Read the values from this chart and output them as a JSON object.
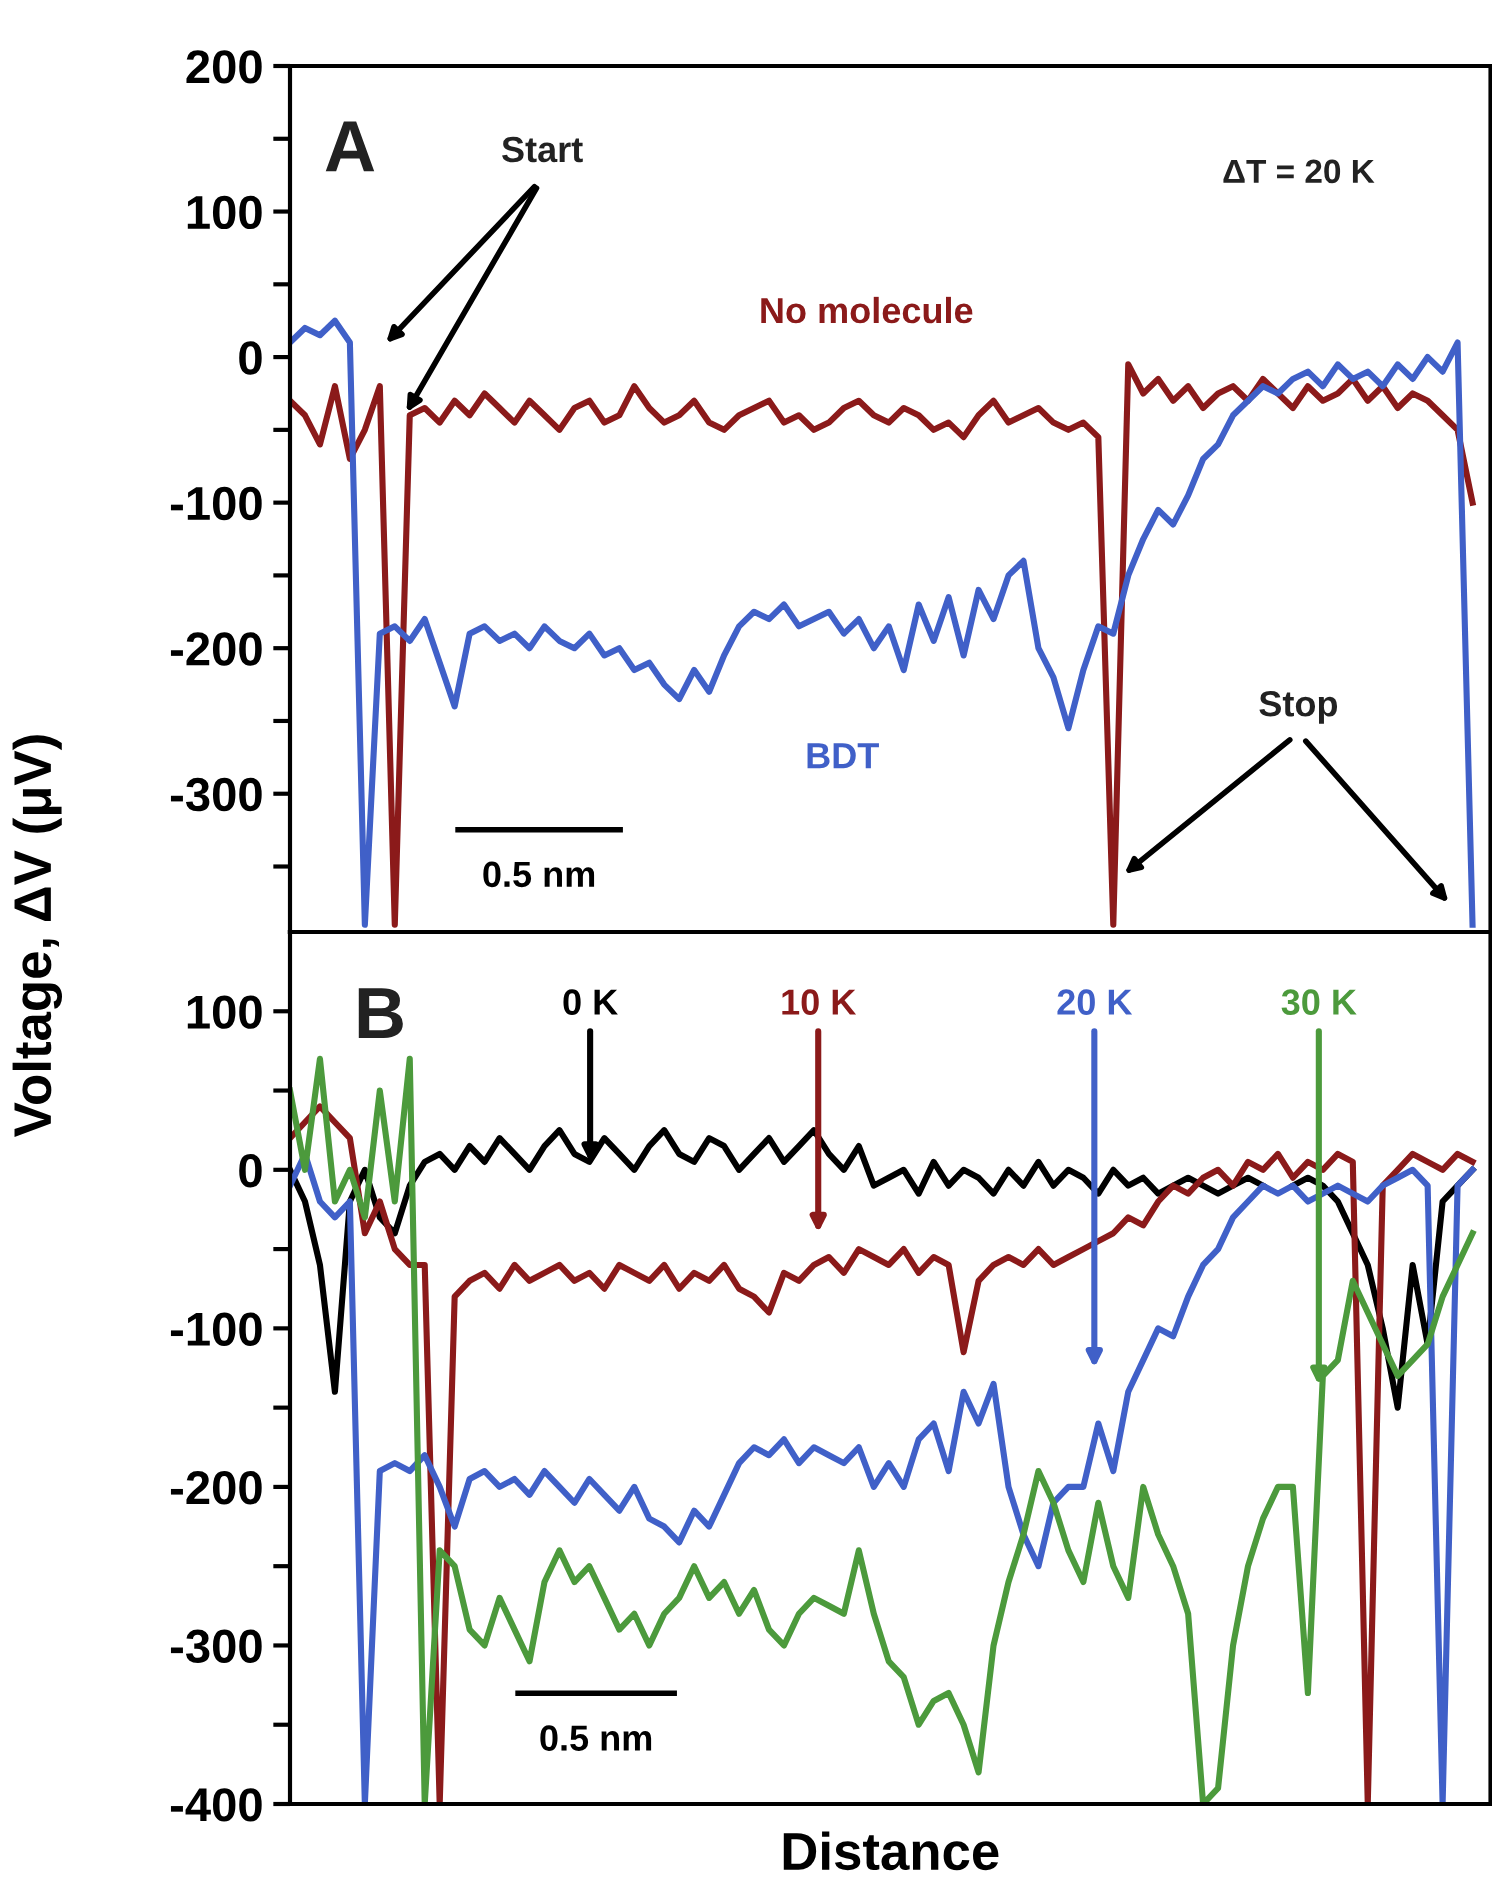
{
  "chart_data": [
    {
      "type": "line",
      "ylabel": "Voltage, ΔV (μV)",
      "tick_labels": "y",
      "categories": [
        null,
        null,
        null,
        null,
        null,
        null,
        null,
        null,
        null,
        null,
        null,
        null,
        null,
        null,
        null,
        null,
        null,
        null,
        null,
        null,
        null,
        null,
        null,
        null,
        null,
        null,
        null,
        null,
        null,
        null,
        null,
        null,
        null,
        null,
        null,
        null,
        null,
        null,
        null,
        null,
        null,
        null,
        null,
        null,
        null,
        null,
        null,
        null,
        null,
        null,
        null,
        null,
        null,
        null,
        null,
        null,
        null,
        null,
        null,
        null,
        null,
        null,
        null,
        null,
        null,
        null,
        null,
        null,
        null,
        null,
        null,
        null,
        null,
        null,
        null,
        null,
        null,
        null,
        null,
        null
      ],
      "ylim": [
        -395,
        200
      ],
      "yticks": [
        200,
        {
          "value": 150,
          "label": null
        },
        100,
        {
          "value": 50,
          "label": null
        },
        0,
        {
          "value": -50,
          "label": null
        },
        -100,
        {
          "value": -150,
          "label": null
        },
        -200,
        {
          "value": -250,
          "label": null
        },
        -300,
        {
          "value": -350,
          "label": null
        }
      ],
      "series": [
        {
          "name": "No molecule",
          "color": "#8b1a1a",
          "values": [
            -30,
            -40,
            -60,
            -20,
            -70,
            -50,
            -20,
            -390,
            -40,
            -35,
            -45,
            -30,
            -40,
            -25,
            -35,
            -45,
            -30,
            -40,
            -50,
            -35,
            -30,
            -45,
            -40,
            -20,
            -35,
            -45,
            -40,
            -30,
            -45,
            -50,
            -40,
            -35,
            -30,
            -45,
            -40,
            -50,
            -45,
            -35,
            -30,
            -40,
            -45,
            -35,
            -40,
            -50,
            -45,
            -55,
            -40,
            -30,
            -45,
            -40,
            -35,
            -45,
            -50,
            -45,
            -55,
            -390,
            -5,
            -25,
            -15,
            -30,
            -20,
            -35,
            -25,
            -20,
            -30,
            -15,
            -25,
            -35,
            -20,
            -30,
            -25,
            -15,
            -30,
            -20,
            -35,
            -25,
            -30,
            -40,
            -50,
            -100
          ]
        },
        {
          "name": "BDT",
          "color": "#4060c8",
          "values": [
            10,
            20,
            15,
            25,
            10,
            -390,
            -190,
            -185,
            -195,
            -180,
            -210,
            -240,
            -190,
            -185,
            -195,
            -190,
            -200,
            -185,
            -195,
            -200,
            -190,
            -205,
            -200,
            -215,
            -210,
            -225,
            -235,
            -215,
            -230,
            -205,
            -185,
            -175,
            -180,
            -170,
            -185,
            -180,
            -175,
            -190,
            -180,
            -200,
            -185,
            -215,
            -170,
            -195,
            -165,
            -205,
            -160,
            -180,
            -150,
            -140,
            -200,
            -220,
            -255,
            -215,
            -185,
            -190,
            -150,
            -125,
            -105,
            -115,
            -95,
            -70,
            -60,
            -40,
            -30,
            -20,
            -25,
            -15,
            -10,
            -20,
            -5,
            -15,
            -10,
            -20,
            -5,
            -15,
            0,
            -10,
            10,
            -390
          ]
        }
      ],
      "annotations": [
        "A",
        "Start",
        "ΔT = 20 K",
        "Stop",
        "0.5 nm"
      ]
    },
    {
      "type": "line",
      "xlabel": "Distance",
      "tick_labels": "y",
      "categories": [
        null,
        null,
        null,
        null,
        null,
        null,
        null,
        null,
        null,
        null,
        null,
        null,
        null,
        null,
        null,
        null,
        null,
        null,
        null,
        null,
        null,
        null,
        null,
        null,
        null,
        null,
        null,
        null,
        null,
        null,
        null,
        null,
        null,
        null,
        null,
        null,
        null,
        null,
        null,
        null,
        null,
        null,
        null,
        null,
        null,
        null,
        null,
        null,
        null,
        null,
        null,
        null,
        null,
        null,
        null,
        null,
        null,
        null,
        null,
        null,
        null,
        null,
        null,
        null,
        null,
        null,
        null,
        null,
        null,
        null,
        null,
        null,
        null,
        null,
        null,
        null,
        null,
        null,
        null,
        null
      ],
      "ylim": [
        -400,
        150
      ],
      "yticks": [
        100,
        {
          "value": 50,
          "label": null
        },
        0,
        {
          "value": -50,
          "label": null
        },
        -100,
        {
          "value": -150,
          "label": null
        },
        -200,
        {
          "value": -250,
          "label": null
        },
        -300,
        {
          "value": -350,
          "label": null
        },
        -400
      ],
      "series": [
        {
          "name": "0 K",
          "color": "#000000",
          "values": [
            0,
            -20,
            -60,
            -140,
            -20,
            0,
            -30,
            -40,
            -10,
            5,
            10,
            0,
            15,
            5,
            20,
            10,
            0,
            15,
            25,
            10,
            5,
            20,
            10,
            0,
            15,
            25,
            10,
            5,
            20,
            15,
            0,
            10,
            20,
            5,
            15,
            25,
            10,
            0,
            15,
            -10,
            -5,
            0,
            -15,
            5,
            -10,
            0,
            -5,
            -15,
            0,
            -10,
            5,
            -10,
            0,
            -5,
            -15,
            0,
            -10,
            -5,
            -15,
            -10,
            -5,
            -10,
            -15,
            -10,
            -5,
            -10,
            null,
            -10,
            -5,
            -10,
            -20,
            -40,
            -60,
            -100,
            -150,
            -60,
            -110,
            -20,
            -10,
            0
          ]
        },
        {
          "name": "10 K",
          "color": "#8b1a1a",
          "values": [
            20,
            30,
            40,
            30,
            20,
            -40,
            -20,
            -50,
            -60,
            -60,
            -400,
            -80,
            -70,
            -65,
            -75,
            -60,
            -70,
            -65,
            -60,
            -70,
            -65,
            -75,
            -60,
            -65,
            -70,
            -60,
            -75,
            -65,
            -70,
            -60,
            -75,
            -80,
            -90,
            -65,
            -70,
            -60,
            -55,
            -65,
            -50,
            -55,
            -60,
            -50,
            -65,
            -55,
            -60,
            -115,
            -70,
            -60,
            -55,
            -60,
            -50,
            -60,
            -55,
            -50,
            -45,
            -40,
            -30,
            -35,
            -20,
            -10,
            -15,
            -5,
            0,
            -10,
            5,
            0,
            10,
            -5,
            5,
            0,
            10,
            5,
            -400,
            -10,
            0,
            10,
            5,
            0,
            10,
            5
          ]
        },
        {
          "name": "20 K",
          "color": "#4060c8",
          "values": [
            -10,
            10,
            -20,
            -30,
            -20,
            -400,
            -190,
            -185,
            -190,
            -180,
            -200,
            -225,
            -195,
            -190,
            -200,
            -195,
            -205,
            -190,
            -200,
            -210,
            -195,
            -205,
            -215,
            -200,
            -220,
            -225,
            -235,
            -215,
            -225,
            -205,
            -185,
            -175,
            -180,
            -170,
            -185,
            -175,
            -180,
            -185,
            -175,
            -200,
            -185,
            -200,
            -170,
            -160,
            -190,
            -140,
            -160,
            -135,
            -200,
            -230,
            -250,
            -210,
            -200,
            -200,
            -160,
            -190,
            -140,
            -120,
            -100,
            -105,
            -80,
            -60,
            -50,
            -30,
            -20,
            -10,
            -15,
            -10,
            -20,
            -15,
            -10,
            -15,
            -20,
            -10,
            -5,
            0,
            -10,
            -400,
            -10,
            0
          ]
        },
        {
          "name": "30 K",
          "color": "#4c9a3c",
          "values": [
            50,
            0,
            70,
            -20,
            0,
            -30,
            50,
            -20,
            70,
            -400,
            -240,
            -250,
            -290,
            -300,
            -270,
            -290,
            -310,
            -260,
            -240,
            -260,
            -250,
            -270,
            -290,
            -280,
            -300,
            -280,
            -270,
            -250,
            -270,
            -260,
            -280,
            -265,
            -290,
            -300,
            -280,
            -270,
            -275,
            -280,
            -240,
            -280,
            -310,
            -320,
            -350,
            -335,
            -330,
            -350,
            -380,
            -300,
            -260,
            -230,
            -190,
            -210,
            -240,
            -260,
            -210,
            -250,
            -270,
            -200,
            -230,
            -250,
            -280,
            -400,
            -390,
            -300,
            -250,
            -220,
            -200,
            -200,
            -330,
            -130,
            -120,
            -70,
            -90,
            -110,
            -130,
            -120,
            -110,
            -80,
            -60,
            -40
          ]
        }
      ],
      "annotations": [
        "B",
        "0.5 nm"
      ]
    }
  ]
}
